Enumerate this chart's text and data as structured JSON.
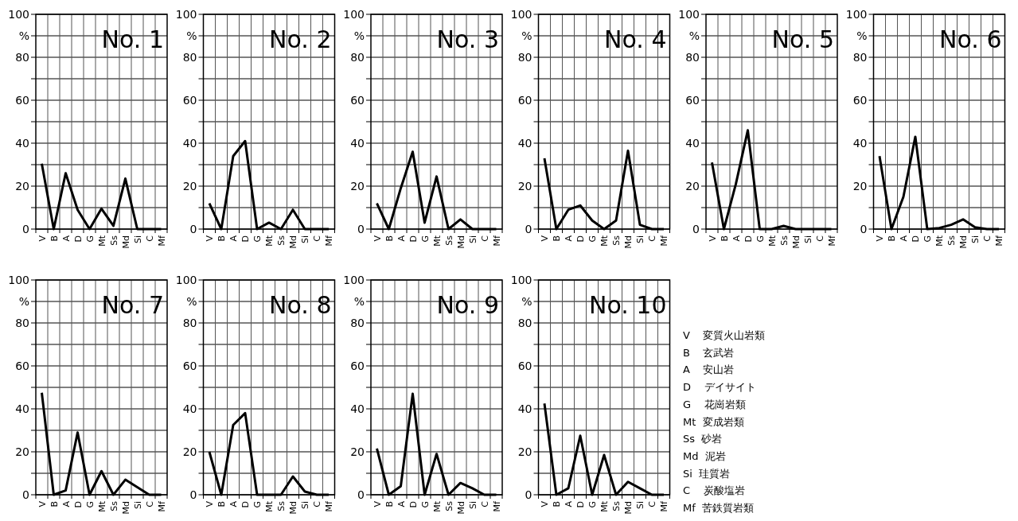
{
  "chart_data": [
    {
      "type": "line",
      "title": "No. 1",
      "categories": [
        "V",
        "B",
        "A",
        "D",
        "G",
        "Mt",
        "Ss",
        "Md",
        "Si",
        "C",
        "Mf"
      ],
      "values": [
        30.5,
        0,
        26,
        9,
        0,
        9.5,
        1.5,
        23.5,
        0,
        0,
        0
      ],
      "color": "#000000",
      "ylim": [
        0,
        100
      ],
      "yticks": [
        0,
        {
          "value": 10,
          "label": null
        },
        20,
        {
          "value": 30,
          "label": null
        },
        40,
        {
          "value": 50,
          "label": null
        },
        60,
        {
          "value": 70,
          "label": null
        },
        80,
        {
          "value": 90,
          "label": "%"
        },
        100
      ],
      "grid": true
    },
    {
      "type": "line",
      "title": "No. 2",
      "categories": [
        "V",
        "B",
        "A",
        "D",
        "G",
        "Mt",
        "Ss",
        "Md",
        "Si",
        "C",
        "Mf"
      ],
      "values": [
        12,
        0,
        34,
        41,
        0,
        3,
        0,
        9,
        0,
        0,
        0
      ],
      "color": "#000000",
      "ylim": [
        0,
        100
      ],
      "yticks": [
        0,
        {
          "value": 10,
          "label": null
        },
        20,
        {
          "value": 30,
          "label": null
        },
        40,
        {
          "value": 50,
          "label": null
        },
        60,
        {
          "value": 70,
          "label": null
        },
        80,
        {
          "value": 90,
          "label": "%"
        },
        100
      ],
      "grid": true
    },
    {
      "type": "line",
      "title": "No. 3",
      "categories": [
        "V",
        "B",
        "A",
        "D",
        "G",
        "Mt",
        "Ss",
        "Md",
        "Si",
        "C",
        "Mf"
      ],
      "values": [
        12,
        0,
        19,
        36,
        3,
        24.5,
        0,
        4.5,
        0,
        0,
        0
      ],
      "color": "#000000",
      "ylim": [
        0,
        100
      ],
      "yticks": [
        0,
        {
          "value": 10,
          "label": null
        },
        20,
        {
          "value": 30,
          "label": null
        },
        40,
        {
          "value": 50,
          "label": null
        },
        60,
        {
          "value": 70,
          "label": null
        },
        80,
        {
          "value": 90,
          "label": "%"
        },
        100
      ],
      "grid": true
    },
    {
      "type": "line",
      "title": "No. 4",
      "categories": [
        "V",
        "B",
        "A",
        "D",
        "G",
        "Mt",
        "Ss",
        "Md",
        "Si",
        "C",
        "Mf"
      ],
      "values": [
        33,
        0,
        9,
        11,
        4,
        0,
        4,
        36.5,
        2,
        0,
        0
      ],
      "color": "#000000",
      "ylim": [
        0,
        100
      ],
      "yticks": [
        0,
        {
          "value": 10,
          "label": null
        },
        20,
        {
          "value": 30,
          "label": null
        },
        40,
        {
          "value": 50,
          "label": null
        },
        60,
        {
          "value": 70,
          "label": null
        },
        80,
        {
          "value": 90,
          "label": "%"
        },
        100
      ],
      "grid": true
    },
    {
      "type": "line",
      "title": "No. 5",
      "categories": [
        "V",
        "B",
        "A",
        "D",
        "G",
        "Mt",
        "Ss",
        "Md",
        "Si",
        "C",
        "Mf"
      ],
      "values": [
        31,
        0,
        21,
        46,
        0,
        0,
        1.5,
        0,
        0,
        0,
        0
      ],
      "color": "#000000",
      "ylim": [
        0,
        100
      ],
      "yticks": [
        0,
        {
          "value": 10,
          "label": null
        },
        20,
        {
          "value": 30,
          "label": null
        },
        40,
        {
          "value": 50,
          "label": null
        },
        60,
        {
          "value": 70,
          "label": null
        },
        80,
        {
          "value": 90,
          "label": "%"
        },
        100
      ],
      "grid": true
    },
    {
      "type": "line",
      "title": "No. 6",
      "categories": [
        "V",
        "B",
        "A",
        "D",
        "G",
        "Mt",
        "Ss",
        "Md",
        "Si",
        "C",
        "Mf"
      ],
      "values": [
        34,
        0,
        15,
        43,
        0,
        0.5,
        2,
        4.5,
        0.8,
        0,
        0
      ],
      "color": "#000000",
      "ylim": [
        0,
        100
      ],
      "yticks": [
        0,
        {
          "value": 10,
          "label": null
        },
        20,
        {
          "value": 30,
          "label": null
        },
        40,
        {
          "value": 50,
          "label": null
        },
        60,
        {
          "value": 70,
          "label": null
        },
        80,
        {
          "value": 90,
          "label": "%"
        },
        100
      ],
      "grid": true
    },
    {
      "type": "line",
      "title": "No. 7",
      "categories": [
        "V",
        "B",
        "A",
        "D",
        "G",
        "Mt",
        "Ss",
        "Md",
        "Si",
        "C",
        "Mf"
      ],
      "values": [
        47.5,
        0,
        2,
        29,
        0,
        11,
        0,
        7,
        3.5,
        0,
        0
      ],
      "color": "#000000",
      "ylim": [
        0,
        100
      ],
      "yticks": [
        0,
        {
          "value": 10,
          "label": null
        },
        20,
        {
          "value": 30,
          "label": null
        },
        40,
        {
          "value": 50,
          "label": null
        },
        60,
        {
          "value": 70,
          "label": null
        },
        80,
        {
          "value": 90,
          "label": "%"
        },
        100
      ],
      "grid": true
    },
    {
      "type": "line",
      "title": "No. 8",
      "categories": [
        "V",
        "B",
        "A",
        "D",
        "G",
        "Mt",
        "Ss",
        "Md",
        "Si",
        "C",
        "Mf"
      ],
      "values": [
        20,
        0,
        32.5,
        38,
        0,
        0,
        0,
        8.5,
        1.5,
        0,
        0
      ],
      "color": "#000000",
      "ylim": [
        0,
        100
      ],
      "yticks": [
        0,
        {
          "value": 10,
          "label": null
        },
        20,
        {
          "value": 30,
          "label": null
        },
        40,
        {
          "value": 50,
          "label": null
        },
        60,
        {
          "value": 70,
          "label": null
        },
        80,
        {
          "value": 90,
          "label": "%"
        },
        100
      ],
      "grid": true
    },
    {
      "type": "line",
      "title": "No. 9",
      "categories": [
        "V",
        "B",
        "A",
        "D",
        "G",
        "Mt",
        "Ss",
        "Md",
        "Si",
        "C",
        "Mf"
      ],
      "values": [
        21.5,
        0,
        4,
        47,
        0,
        19,
        0,
        5.5,
        3,
        0,
        0
      ],
      "color": "#000000",
      "ylim": [
        0,
        100
      ],
      "yticks": [
        0,
        {
          "value": 10,
          "label": null
        },
        20,
        {
          "value": 30,
          "label": null
        },
        40,
        {
          "value": 50,
          "label": null
        },
        60,
        {
          "value": 70,
          "label": null
        },
        80,
        {
          "value": 90,
          "label": "%"
        },
        100
      ],
      "grid": true
    },
    {
      "type": "line",
      "title": "No. 10",
      "categories": [
        "V",
        "B",
        "A",
        "D",
        "G",
        "Mt",
        "Ss",
        "Md",
        "Si",
        "C",
        "Mf"
      ],
      "values": [
        42.5,
        0,
        3,
        27.5,
        0,
        18.5,
        0,
        6,
        3,
        0,
        0
      ],
      "color": "#000000",
      "ylim": [
        0,
        100
      ],
      "yticks": [
        0,
        {
          "value": 10,
          "label": null
        },
        20,
        {
          "value": 30,
          "label": null
        },
        40,
        {
          "value": 50,
          "label": null
        },
        60,
        {
          "value": 70,
          "label": null
        },
        80,
        {
          "value": 90,
          "label": "%"
        },
        100
      ],
      "grid": true
    },
    {
      "type": "other",
      "annotations": [
        "V    変質火山岩類",
        "B    玄武岩",
        "A    安山岩",
        "D    デイサイト",
        "G    花崗岩類",
        "Mt  変成岩類",
        "Ss  砂岩",
        "Md  泥岩",
        "Si  珪質岩",
        "C    炭酸塩岩",
        "Mf  苦鉄質岩類"
      ]
    }
  ]
}
